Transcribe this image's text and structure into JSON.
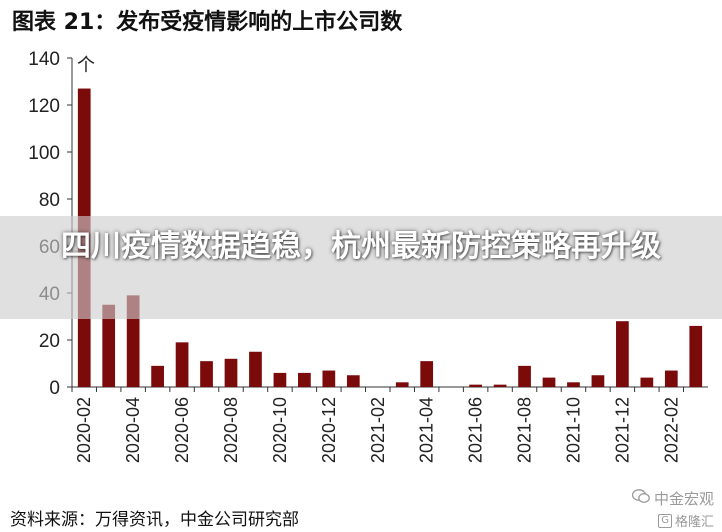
{
  "chart_data": {
    "type": "bar",
    "title": "图表 21：发布受疫情影响的上市公司数",
    "ylabel": "个",
    "xlabel": "",
    "ylim": [
      0,
      140
    ],
    "yticks": [
      0,
      20,
      40,
      60,
      80,
      100,
      120,
      140
    ],
    "grid": false,
    "legend": "none",
    "bar_color": "#7b0a0a",
    "categories": [
      "2020-02",
      "2020-03",
      "2020-04",
      "2020-05",
      "2020-06",
      "2020-07",
      "2020-08",
      "2020-09",
      "2020-10",
      "2020-11",
      "2020-12",
      "2021-01",
      "2021-02",
      "2021-03",
      "2021-04",
      "2021-05",
      "2021-06",
      "2021-07",
      "2021-08",
      "2021-09",
      "2021-10",
      "2021-11",
      "2021-12",
      "2022-01",
      "2022-02",
      "2022-03"
    ],
    "tick_labels": [
      "2020-02",
      "2020-04",
      "2020-06",
      "2020-08",
      "2020-10",
      "2020-12",
      "2021-02",
      "2021-04",
      "2021-06",
      "2021-08",
      "2021-10",
      "2021-12",
      "2022-02"
    ],
    "values": [
      127,
      35,
      39,
      9,
      19,
      11,
      12,
      15,
      6,
      6,
      7,
      5,
      0,
      2,
      11,
      0,
      1,
      1,
      9,
      4,
      2,
      5,
      28,
      4,
      7,
      26
    ]
  },
  "headline": "四川疫情数据趋稳，杭州最新防控策略再升级",
  "source": "资料来源：万得资讯，中金公司研究部",
  "watermark": {
    "line1": "中金宏观",
    "line2": "格隆汇"
  },
  "colors": {
    "bar": "#7b0a0a",
    "axis": "#333333",
    "overlay_text": "#ffffff"
  }
}
